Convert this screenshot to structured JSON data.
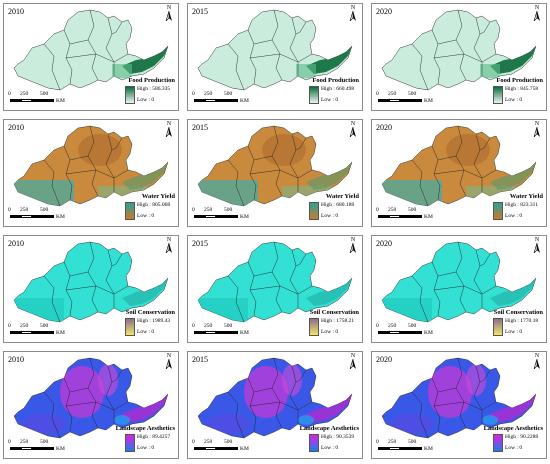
{
  "years": [
    "2010",
    "2015",
    "2020"
  ],
  "north_label": "N",
  "scale": {
    "ticks": [
      "0",
      "250",
      "500"
    ],
    "unit": "KM"
  },
  "rows": [
    {
      "service": "Food Production",
      "colors": {
        "base": "#c9ecdd",
        "accent": "#0c6b3a",
        "ramp_high": "#0c6b3a",
        "ramp_low": "#e8f7ef"
      },
      "panels": [
        {
          "high": "High : 586.335",
          "low": "Low : 0"
        },
        {
          "high": "High : 660.498",
          "low": "Low : 0"
        },
        {
          "high": "High : 845.758",
          "low": "Low : 0"
        }
      ]
    },
    {
      "service": "Water Yield",
      "colors": {
        "base": "#c98a3e",
        "accent": "#4aa9a0",
        "ramp_high": "#2aa198",
        "ramp_low": "#c97a2a"
      },
      "panels": [
        {
          "high": "High : 805.068",
          "low": "Low : 0"
        },
        {
          "high": "High : 680.188",
          "low": "Low : 0"
        },
        {
          "high": "High : 823.311",
          "low": "Low : 0"
        }
      ]
    },
    {
      "service": "Soil Conservation",
      "colors": {
        "base": "#33e0d4",
        "accent": "#22b5aa",
        "ramp_high": "#8a6f8c",
        "ramp_low": "#f5e26a"
      },
      "panels": [
        {
          "high": "High : 1989.43",
          "low": "Low : 0"
        },
        {
          "high": "High : 1758.21",
          "low": "Low : 0"
        },
        {
          "high": "High : 1770.18",
          "low": "Low : 0"
        }
      ]
    },
    {
      "service": "Landscape Aesthetics",
      "colors": {
        "base": "#3a58e8",
        "accent": "#c23ad6",
        "ramp_high": "#e01ee0",
        "ramp_low": "#1e7ee8"
      },
      "panels": [
        {
          "high": "High : 89.4257",
          "low": "Low : 0"
        },
        {
          "high": "High : 90.3539",
          "low": "Low : 0"
        },
        {
          "high": "High : 90.2288",
          "low": "Low : 0"
        }
      ]
    }
  ]
}
